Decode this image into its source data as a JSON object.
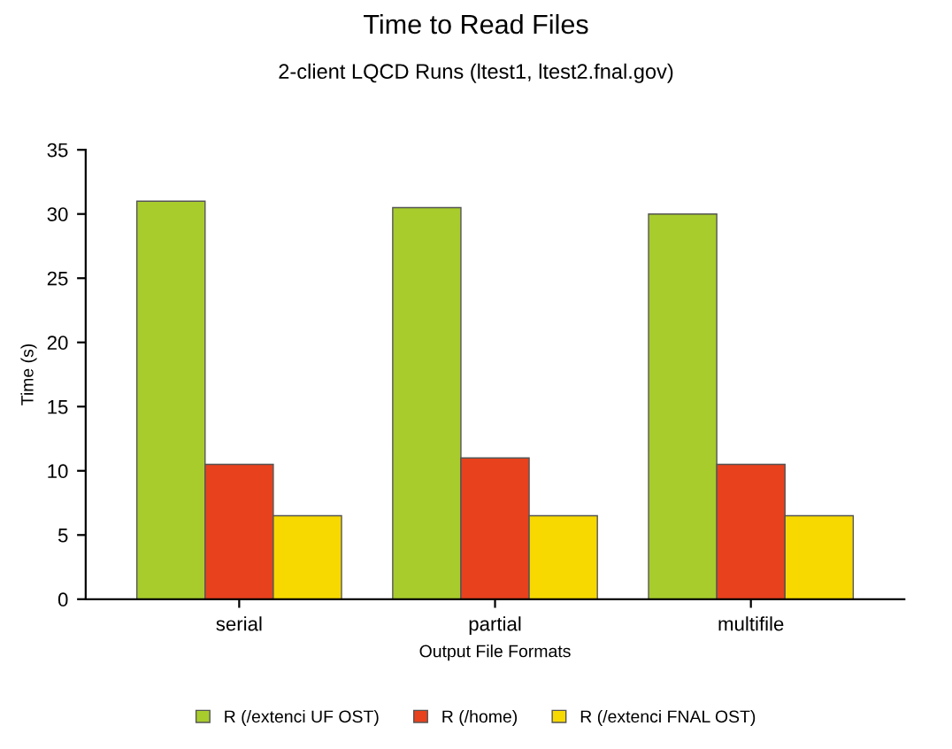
{
  "chart_data": {
    "type": "bar",
    "title": "Time to Read Files",
    "subtitle": "2-client LQCD Runs (ltest1, ltest2.fnal.gov)",
    "xlabel": "Output File Formats",
    "ylabel": "Time (s)",
    "categories": [
      "serial",
      "partial",
      "multifile"
    ],
    "series": [
      {
        "name": "R (/extenci UF OST)",
        "color": "#a8cc2c",
        "values": [
          31,
          30.5,
          30
        ]
      },
      {
        "name": "R (/home)",
        "color": "#e8411d",
        "values": [
          10.5,
          11,
          10.5
        ]
      },
      {
        "name": "R (/extenci FNAL OST)",
        "color": "#f7d900",
        "values": [
          6.5,
          6.5,
          6.5
        ]
      }
    ],
    "ylim": [
      0,
      35
    ],
    "yticks": [
      0,
      5,
      10,
      15,
      20,
      25,
      30,
      35
    ],
    "grid": false,
    "legend": "bottom"
  }
}
